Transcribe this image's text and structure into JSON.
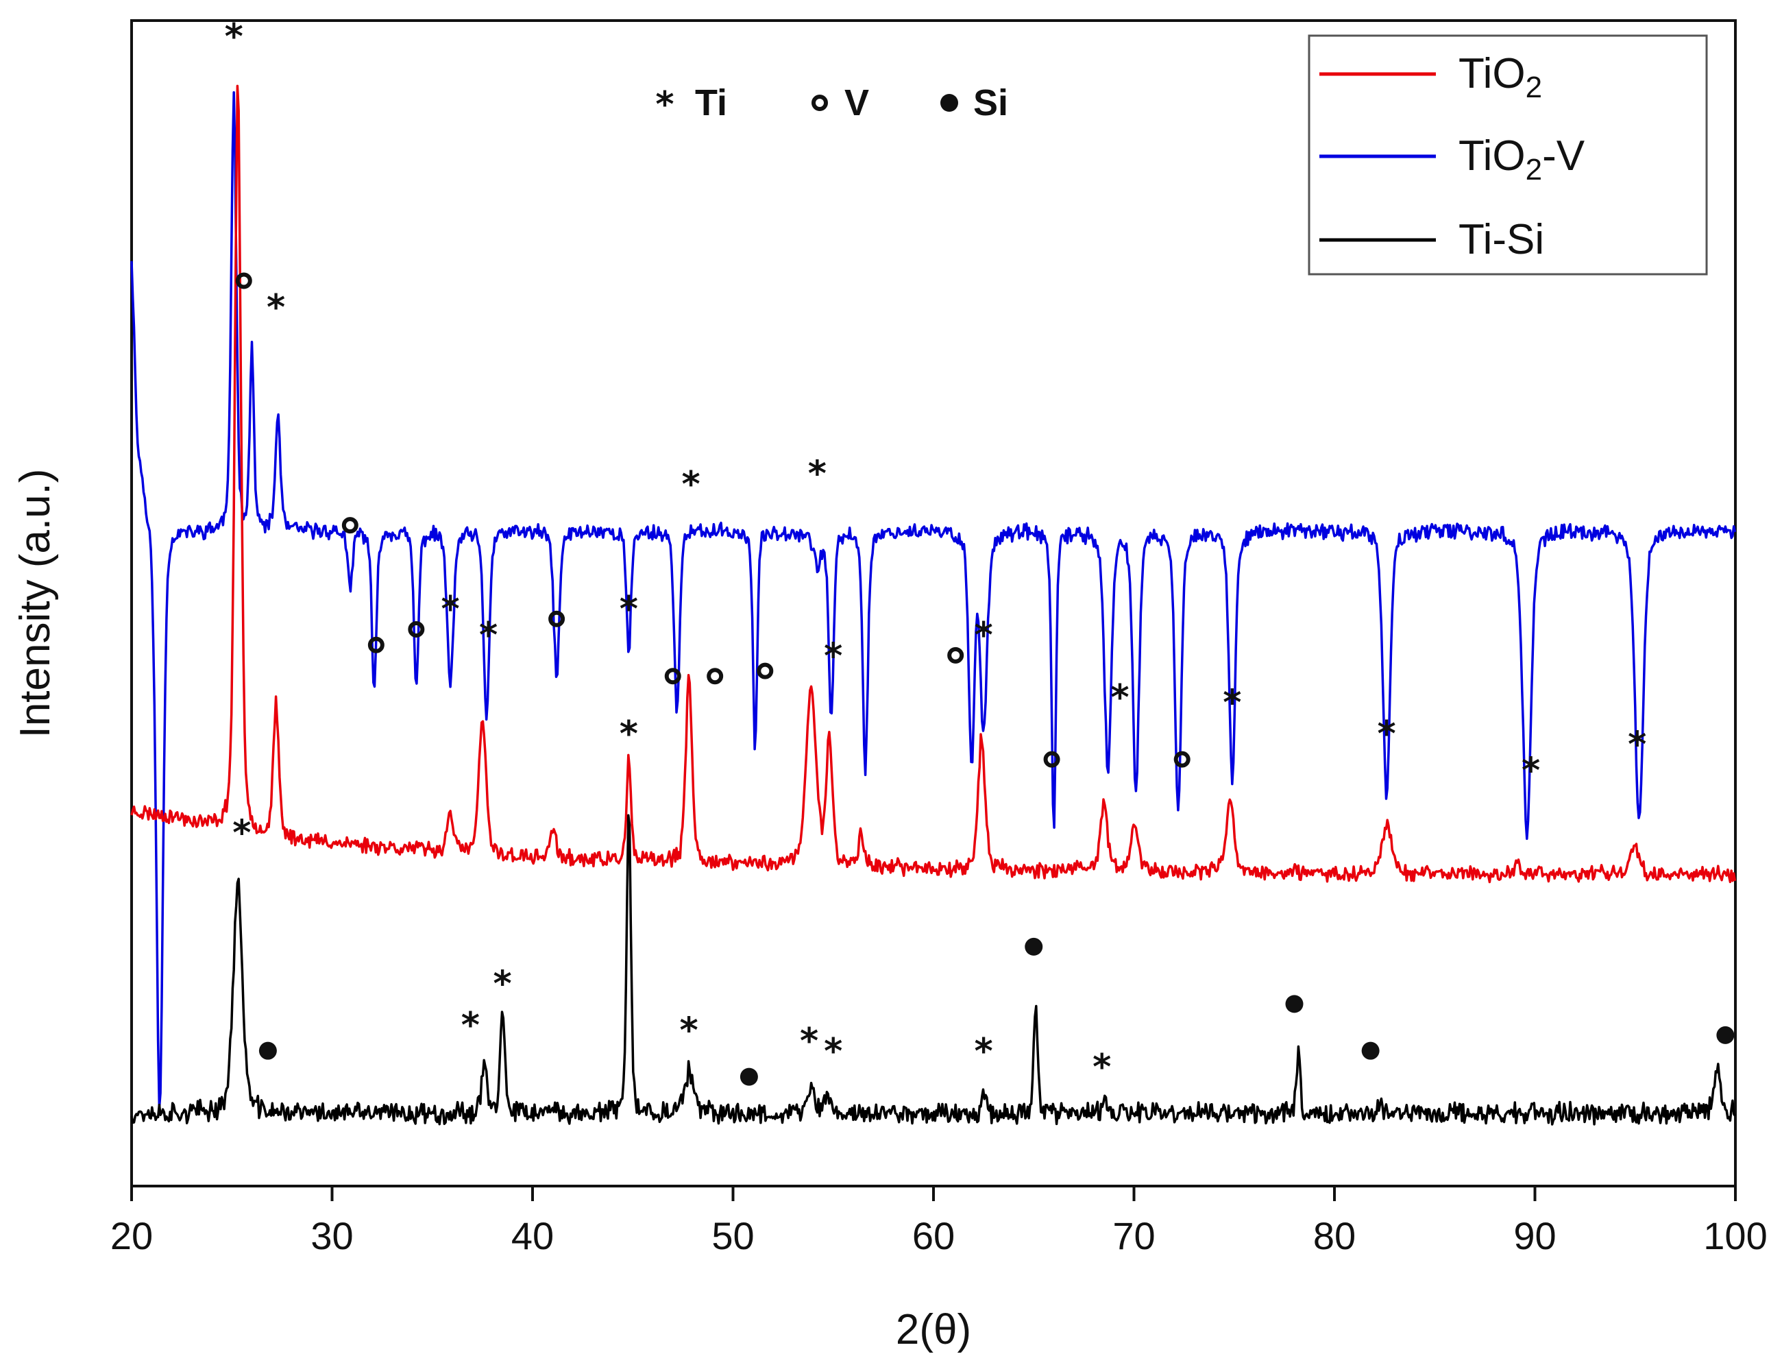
{
  "chart_data": {
    "type": "line",
    "xlabel": "2(θ)",
    "ylabel": "Intensity (a.u.)",
    "xlim": [
      20,
      100
    ],
    "x_ticks": [
      20,
      30,
      40,
      50,
      60,
      70,
      80,
      90,
      100
    ],
    "y_ticks": [],
    "marker_key": [
      {
        "symbol": "*",
        "label": "Ti",
        "shape": "star"
      },
      {
        "symbol": "o",
        "label": "V",
        "shape": "open-circle"
      },
      {
        "symbol": "•",
        "label": "Si",
        "shape": "filled-circle"
      }
    ],
    "legend": [
      {
        "name": "TiO2",
        "base": "TiO",
        "sub": "2",
        "suffix": "",
        "color": "#e8000b"
      },
      {
        "name": "TiO2-V",
        "base": "TiO",
        "sub": "2",
        "suffix": "-V",
        "color": "#0000e0"
      },
      {
        "name": "Ti-Si",
        "base": "Ti-Si",
        "sub": "",
        "suffix": "",
        "color": "#000000"
      }
    ],
    "series": [
      {
        "name": "TiO2-V",
        "color": "#0000e0",
        "baseline": 0.62,
        "noise": 0.006,
        "seed": 11,
        "points": [
          [
            20.0,
            0.9
          ],
          [
            20.3,
            0.72
          ],
          [
            20.8,
            0.66
          ],
          [
            21.5,
            0.68
          ],
          [
            22.0,
            0.64
          ],
          [
            23.0,
            0.63
          ],
          [
            24.0,
            0.63
          ]
        ],
        "peaks": [
          [
            21.4,
            0.07,
            0.25
          ],
          [
            25.1,
            1.05,
            0.18
          ],
          [
            26.0,
            0.8,
            0.15
          ],
          [
            27.3,
            0.74,
            0.18
          ],
          [
            30.9,
            0.57,
            0.16
          ],
          [
            32.1,
            0.47,
            0.16
          ],
          [
            34.2,
            0.48,
            0.17
          ],
          [
            35.9,
            0.48,
            0.22
          ],
          [
            37.7,
            0.45,
            0.2
          ],
          [
            41.2,
            0.49,
            0.2
          ],
          [
            44.8,
            0.51,
            0.16
          ],
          [
            47.2,
            0.45,
            0.18
          ],
          [
            47.9,
            0.63,
            0.18
          ],
          [
            51.1,
            0.42,
            0.15
          ],
          [
            54.2,
            0.6,
            0.3
          ],
          [
            54.9,
            0.45,
            0.18
          ],
          [
            56.6,
            0.4,
            0.18
          ],
          [
            61.9,
            0.41,
            0.2
          ],
          [
            62.5,
            0.44,
            0.25
          ],
          [
            66.0,
            0.34,
            0.15
          ],
          [
            68.7,
            0.4,
            0.25
          ],
          [
            70.1,
            0.38,
            0.22
          ],
          [
            72.2,
            0.36,
            0.22
          ],
          [
            74.9,
            0.39,
            0.22
          ],
          [
            82.6,
            0.37,
            0.25
          ],
          [
            89.6,
            0.34,
            0.3
          ],
          [
            95.2,
            0.35,
            0.3
          ]
        ]
      },
      {
        "name": "TiO2",
        "color": "#e8000b",
        "baseline": 0.33,
        "noise": 0.006,
        "seed": 23,
        "points": [
          [
            20.0,
            0.36
          ],
          [
            22.0,
            0.355
          ],
          [
            24.0,
            0.345
          ],
          [
            26.5,
            0.335
          ],
          [
            30.0,
            0.33
          ],
          [
            40.0,
            0.315
          ],
          [
            60.0,
            0.305
          ],
          [
            80.0,
            0.3
          ],
          [
            100.0,
            0.3
          ]
        ],
        "peaks": [
          [
            25.3,
            1.06,
            0.22
          ],
          [
            27.2,
            0.46,
            0.2
          ],
          [
            35.9,
            0.36,
            0.22
          ],
          [
            37.5,
            0.45,
            0.25
          ],
          [
            41.0,
            0.34,
            0.25
          ],
          [
            44.8,
            0.41,
            0.15
          ],
          [
            47.8,
            0.49,
            0.22
          ],
          [
            53.9,
            0.48,
            0.35
          ],
          [
            54.8,
            0.43,
            0.22
          ],
          [
            56.4,
            0.34,
            0.18
          ],
          [
            62.4,
            0.43,
            0.25
          ],
          [
            68.5,
            0.37,
            0.25
          ],
          [
            70.0,
            0.35,
            0.25
          ],
          [
            74.8,
            0.37,
            0.28
          ],
          [
            82.6,
            0.35,
            0.35
          ],
          [
            89.2,
            0.31,
            0.2
          ],
          [
            95.0,
            0.33,
            0.3
          ]
        ]
      },
      {
        "name": "Ti-Si",
        "color": "#000000",
        "baseline": 0.067,
        "noise": 0.008,
        "seed": 37,
        "points": [
          [
            20.0,
            0.07
          ],
          [
            100.0,
            0.07
          ]
        ],
        "peaks": [
          [
            25.3,
            0.29,
            0.33
          ],
          [
            37.6,
            0.12,
            0.2
          ],
          [
            38.5,
            0.17,
            0.15
          ],
          [
            44.8,
            0.36,
            0.15
          ],
          [
            47.8,
            0.11,
            0.3
          ],
          [
            53.9,
            0.1,
            0.2
          ],
          [
            54.7,
            0.09,
            0.18
          ],
          [
            62.5,
            0.09,
            0.18
          ],
          [
            65.1,
            0.18,
            0.14
          ],
          [
            68.6,
            0.08,
            0.15
          ],
          [
            78.2,
            0.13,
            0.14
          ],
          [
            82.3,
            0.08,
            0.15
          ],
          [
            99.1,
            0.11,
            0.25
          ]
        ]
      }
    ],
    "annotations": [
      {
        "series": "TiO2-V",
        "shape": "star",
        "x": 25.1,
        "y": 1.11
      },
      {
        "series": "TiO2-V",
        "shape": "open-circle",
        "x": 25.6,
        "y": 0.87
      },
      {
        "series": "TiO2-V",
        "shape": "star",
        "x": 27.2,
        "y": 0.85
      },
      {
        "series": "TiO2-V",
        "shape": "open-circle",
        "x": 30.9,
        "y": 0.635
      },
      {
        "series": "TiO2-V",
        "shape": "open-circle",
        "x": 32.2,
        "y": 0.52
      },
      {
        "series": "TiO2-V",
        "shape": "open-circle",
        "x": 34.2,
        "y": 0.535
      },
      {
        "series": "TiO2-V",
        "shape": "star",
        "x": 35.9,
        "y": 0.56
      },
      {
        "series": "TiO2-V",
        "shape": "star",
        "x": 37.8,
        "y": 0.535
      },
      {
        "series": "TiO2-V",
        "shape": "open-circle",
        "x": 41.2,
        "y": 0.545
      },
      {
        "series": "TiO2-V",
        "shape": "star",
        "x": 44.8,
        "y": 0.56
      },
      {
        "series": "TiO2-V",
        "shape": "open-circle",
        "x": 47.0,
        "y": 0.49
      },
      {
        "series": "TiO2-V",
        "shape": "star",
        "x": 47.9,
        "y": 0.68
      },
      {
        "series": "TiO2-V",
        "shape": "open-circle",
        "x": 49.1,
        "y": 0.49
      },
      {
        "series": "TiO2-V",
        "shape": "open-circle",
        "x": 51.6,
        "y": 0.495
      },
      {
        "series": "TiO2-V",
        "shape": "star",
        "x": 54.2,
        "y": 0.69
      },
      {
        "series": "TiO2-V",
        "shape": "star",
        "x": 55.0,
        "y": 0.515
      },
      {
        "series": "TiO2-V",
        "shape": "open-circle",
        "x": 61.1,
        "y": 0.51
      },
      {
        "series": "TiO2-V",
        "shape": "star",
        "x": 62.5,
        "y": 0.535
      },
      {
        "series": "TiO2-V",
        "shape": "open-circle",
        "x": 65.9,
        "y": 0.41
      },
      {
        "series": "TiO2-V",
        "shape": "star",
        "x": 69.3,
        "y": 0.475
      },
      {
        "series": "TiO2-V",
        "shape": "open-circle",
        "x": 72.4,
        "y": 0.41
      },
      {
        "series": "TiO2-V",
        "shape": "star",
        "x": 74.9,
        "y": 0.47
      },
      {
        "series": "TiO2-V",
        "shape": "star",
        "x": 82.6,
        "y": 0.44
      },
      {
        "series": "TiO2-V",
        "shape": "star",
        "x": 89.8,
        "y": 0.405
      },
      {
        "series": "TiO2-V",
        "shape": "star",
        "x": 95.1,
        "y": 0.43
      },
      {
        "series": "TiO2",
        "shape": "star",
        "x": 44.8,
        "y": 0.44
      },
      {
        "series": "Ti-Si",
        "shape": "star",
        "x": 25.5,
        "y": 0.345
      },
      {
        "series": "Ti-Si",
        "shape": "filled-circle",
        "x": 26.8,
        "y": 0.13
      },
      {
        "series": "Ti-Si",
        "shape": "star",
        "x": 36.9,
        "y": 0.16
      },
      {
        "series": "Ti-Si",
        "shape": "star",
        "x": 38.5,
        "y": 0.2
      },
      {
        "series": "Ti-Si",
        "shape": "star",
        "x": 47.8,
        "y": 0.155
      },
      {
        "series": "Ti-Si",
        "shape": "filled-circle",
        "x": 50.8,
        "y": 0.105
      },
      {
        "series": "Ti-Si",
        "shape": "star",
        "x": 53.8,
        "y": 0.145
      },
      {
        "series": "Ti-Si",
        "shape": "star",
        "x": 55.0,
        "y": 0.135
      },
      {
        "series": "Ti-Si",
        "shape": "star",
        "x": 62.5,
        "y": 0.135
      },
      {
        "series": "Ti-Si",
        "shape": "filled-circle",
        "x": 65.0,
        "y": 0.23
      },
      {
        "series": "Ti-Si",
        "shape": "star",
        "x": 68.4,
        "y": 0.12
      },
      {
        "series": "Ti-Si",
        "shape": "filled-circle",
        "x": 78.0,
        "y": 0.175
      },
      {
        "series": "Ti-Si",
        "shape": "filled-circle",
        "x": 81.8,
        "y": 0.13
      },
      {
        "series": "Ti-Si",
        "shape": "filled-circle",
        "x": 99.5,
        "y": 0.145
      }
    ]
  }
}
